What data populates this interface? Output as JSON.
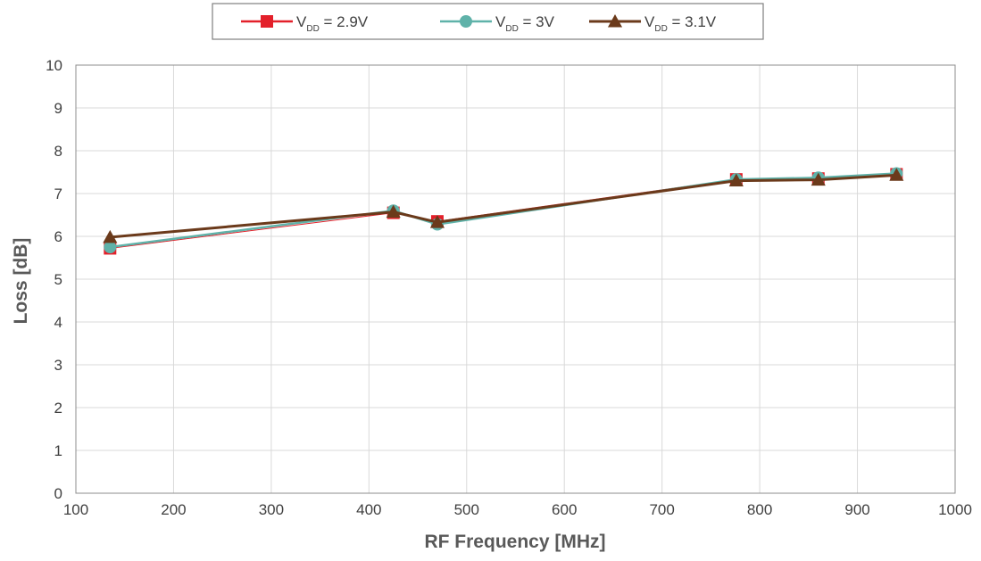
{
  "chart_data": {
    "type": "line",
    "title": "",
    "xlabel": "RF Frequency [MHz]",
    "ylabel": "Loss [dB]",
    "xlim": [
      100,
      1000
    ],
    "ylim": [
      0,
      10
    ],
    "x_ticks": [
      "100",
      "200",
      "300",
      "400",
      "500",
      "600",
      "700",
      "800",
      "900",
      "1000"
    ],
    "y_ticks": [
      "0",
      "1",
      "2",
      "3",
      "4",
      "5",
      "6",
      "7",
      "8",
      "9",
      "10"
    ],
    "grid": true,
    "legend_position": "top-center",
    "x": [
      135,
      425,
      470,
      776,
      860,
      940
    ],
    "series": [
      {
        "name_main": "V",
        "name_sub": "DD",
        "name_rest": " = 2.9V",
        "marker": "square",
        "color": "#e3202a",
        "line_width": 1,
        "values": [
          5.72,
          6.55,
          6.35,
          7.33,
          7.35,
          7.45
        ]
      },
      {
        "name_main": "V",
        "name_sub": "DD",
        "name_rest": " = 3V",
        "marker": "circle",
        "color": "#5fb2a9",
        "line_width": 2.5,
        "values": [
          5.75,
          6.6,
          6.28,
          7.33,
          7.37,
          7.47
        ]
      },
      {
        "name_main": "V",
        "name_sub": "DD",
        "name_rest": " = 3.1V",
        "marker": "triangle",
        "color": "#6b3a1b",
        "line_width": 3,
        "values": [
          5.98,
          6.57,
          6.33,
          7.3,
          7.32,
          7.43
        ]
      }
    ]
  }
}
